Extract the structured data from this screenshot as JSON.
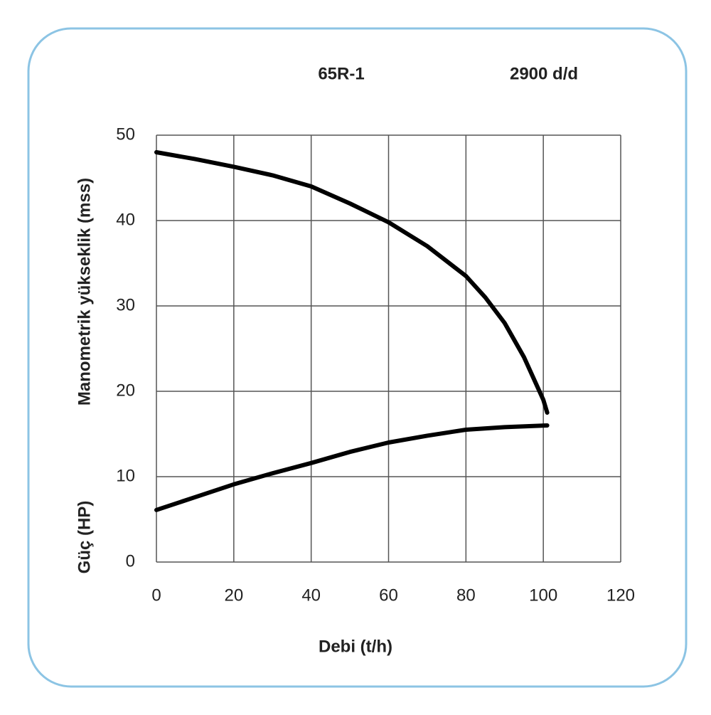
{
  "chart_data": {
    "type": "line",
    "title": "65R-1",
    "subtitle": "2900 d/d",
    "xlabel": "Debi (t/h)",
    "ylabels": [
      "Manometrik yükseklik (mss)",
      "Güç (HP)"
    ],
    "series": [
      {
        "color": "#000000",
        "x": [
          0,
          10,
          20,
          30,
          40,
          50,
          60,
          70,
          80,
          85,
          90,
          95,
          100,
          101
        ],
        "values": [
          48,
          47.2,
          46.3,
          45.3,
          44,
          42,
          39.8,
          37,
          33.5,
          31,
          28,
          24,
          19,
          17.5
        ]
      },
      {
        "color": "#000000",
        "x": [
          0,
          10,
          20,
          30,
          40,
          50,
          60,
          70,
          80,
          90,
          101
        ],
        "values": [
          6.1,
          7.6,
          9.1,
          10.4,
          11.6,
          12.9,
          14,
          14.8,
          15.5,
          15.8,
          16
        ]
      }
    ],
    "xlim": [
      0,
      120
    ],
    "xticks": [
      0,
      20,
      40,
      60,
      80,
      100,
      120
    ],
    "ylim": [
      0,
      50
    ],
    "yticks": [
      0,
      10,
      20,
      30,
      40,
      50
    ],
    "grid": true
  }
}
